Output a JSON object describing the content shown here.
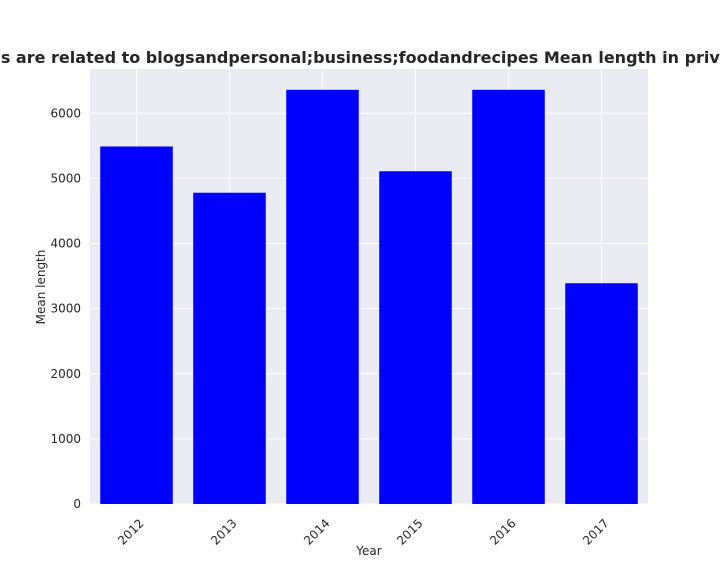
{
  "colors": {
    "plot_background": "#eaeaf2",
    "grid": "#ffffff",
    "bar": "#0000ff",
    "text": "#262626"
  },
  "chart_data": {
    "type": "bar",
    "title": "Categories are related to blogsandpersonal;business;foodandrecipes Mean length in privacy policies",
    "xlabel": "Year",
    "ylabel": "Mean length",
    "categories": [
      "2012",
      "2013",
      "2014",
      "2015",
      "2016",
      "2017"
    ],
    "values": [
      5490,
      4780,
      6360,
      5110,
      6360,
      3390
    ],
    "ylim": [
      0,
      6680
    ],
    "yticks": [
      0,
      1000,
      2000,
      3000,
      4000,
      5000,
      6000
    ],
    "grid": true,
    "legend": "none"
  }
}
